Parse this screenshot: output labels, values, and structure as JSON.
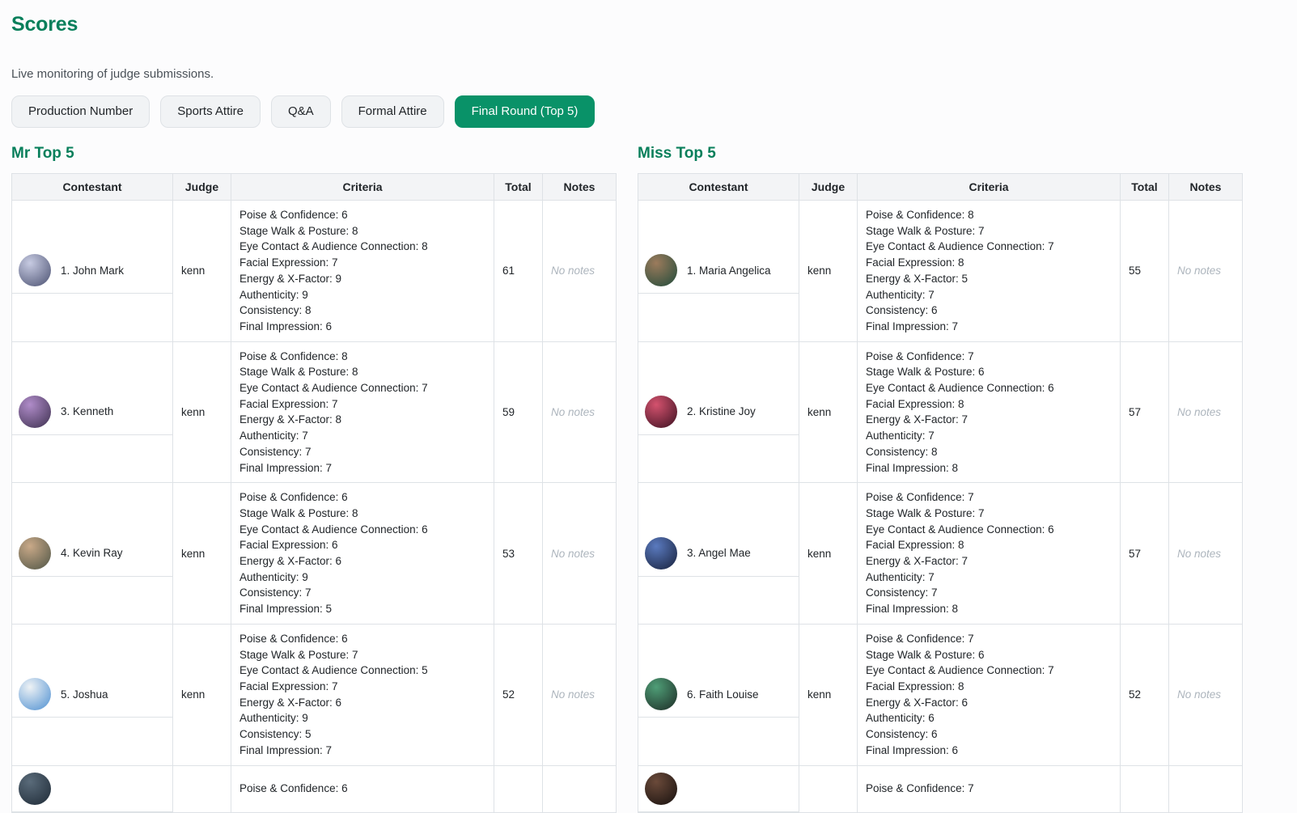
{
  "page": {
    "title": "Scores",
    "subtitle": "Live monitoring of judge submissions."
  },
  "colors": {
    "accent_green": "#099268",
    "heading_green": "#087f5b"
  },
  "tabs": [
    {
      "label": "Production Number",
      "active": false
    },
    {
      "label": "Sports Attire",
      "active": false
    },
    {
      "label": "Q&A",
      "active": false
    },
    {
      "label": "Formal Attire",
      "active": false
    },
    {
      "label": "Final Round (Top 5)",
      "active": true
    }
  ],
  "columns": [
    "Contestant",
    "Judge",
    "Criteria",
    "Total",
    "Notes"
  ],
  "sections": [
    {
      "title": "Mr Top 5",
      "rows": [
        {
          "contestant": "1. John Mark",
          "judge": "kenn",
          "criteria": [
            "Poise & Confidence: 6",
            "Stage Walk & Posture: 8",
            "Eye Contact & Audience Connection: 8",
            "Facial Expression: 7",
            "Energy & X-Factor: 9",
            "Authenticity: 9",
            "Consistency: 8",
            "Final Impression: 6"
          ],
          "total": "61",
          "notes": "No notes",
          "avatar_colors": [
            "#c7cbe2",
            "#4a5070"
          ]
        },
        {
          "contestant": "3. Kenneth",
          "judge": "kenn",
          "criteria": [
            "Poise & Confidence: 8",
            "Stage Walk & Posture: 8",
            "Eye Contact & Audience Connection: 7",
            "Facial Expression: 7",
            "Energy & X-Factor: 8",
            "Authenticity: 7",
            "Consistency: 7",
            "Final Impression: 7"
          ],
          "total": "59",
          "notes": "No notes",
          "avatar_colors": [
            "#b08cc9",
            "#3c2f4e"
          ]
        },
        {
          "contestant": "4. Kevin Ray",
          "judge": "kenn",
          "criteria": [
            "Poise & Confidence: 6",
            "Stage Walk & Posture: 8",
            "Eye Contact & Audience Connection: 6",
            "Facial Expression: 6",
            "Energy & X-Factor: 6",
            "Authenticity: 9",
            "Consistency: 7",
            "Final Impression: 5"
          ],
          "total": "53",
          "notes": "No notes",
          "avatar_colors": [
            "#c9a988",
            "#4e5445"
          ]
        },
        {
          "contestant": "5. Joshua",
          "judge": "kenn",
          "criteria": [
            "Poise & Confidence: 6",
            "Stage Walk & Posture: 7",
            "Eye Contact & Audience Connection: 5",
            "Facial Expression: 7",
            "Energy & X-Factor: 6",
            "Authenticity: 9",
            "Consistency: 5",
            "Final Impression: 7"
          ],
          "total": "52",
          "notes": "No notes",
          "avatar_colors": [
            "#eef2f5",
            "#4d8fd1"
          ]
        },
        {
          "contestant": "",
          "judge": "",
          "criteria": [
            "Poise & Confidence: 6"
          ],
          "total": "",
          "notes": "",
          "avatar_colors": [
            "#5a6b7a",
            "#1e2a36"
          ]
        }
      ]
    },
    {
      "title": "Miss Top 5",
      "rows": [
        {
          "contestant": "1. Maria Angelica",
          "judge": "kenn",
          "criteria": [
            "Poise & Confidence: 8",
            "Stage Walk & Posture: 7",
            "Eye Contact & Audience Connection: 7",
            "Facial Expression: 8",
            "Energy & X-Factor: 5",
            "Authenticity: 7",
            "Consistency: 6",
            "Final Impression: 7"
          ],
          "total": "55",
          "notes": "No notes",
          "avatar_colors": [
            "#9c7b5c",
            "#1f4a3a"
          ]
        },
        {
          "contestant": "2. Kristine Joy",
          "judge": "kenn",
          "criteria": [
            "Poise & Confidence: 7",
            "Stage Walk & Posture: 6",
            "Eye Contact & Audience Connection: 6",
            "Facial Expression: 8",
            "Energy & X-Factor: 7",
            "Authenticity: 7",
            "Consistency: 8",
            "Final Impression: 8"
          ],
          "total": "57",
          "notes": "No notes",
          "avatar_colors": [
            "#d4526e",
            "#3a1020"
          ]
        },
        {
          "contestant": "3. Angel Mae",
          "judge": "kenn",
          "criteria": [
            "Poise & Confidence: 7",
            "Stage Walk & Posture: 7",
            "Eye Contact & Audience Connection: 6",
            "Facial Expression: 8",
            "Energy & X-Factor: 7",
            "Authenticity: 7",
            "Consistency: 7",
            "Final Impression: 8"
          ],
          "total": "57",
          "notes": "No notes",
          "avatar_colors": [
            "#5a7abf",
            "#17203a"
          ]
        },
        {
          "contestant": "6. Faith Louise",
          "judge": "kenn",
          "criteria": [
            "Poise & Confidence: 7",
            "Stage Walk & Posture: 6",
            "Eye Contact & Audience Connection: 7",
            "Facial Expression: 8",
            "Energy & X-Factor: 6",
            "Authenticity: 6",
            "Consistency: 6",
            "Final Impression: 6"
          ],
          "total": "52",
          "notes": "No notes",
          "avatar_colors": [
            "#4f9e77",
            "#1c2a24"
          ]
        },
        {
          "contestant": "",
          "judge": "",
          "criteria": [
            "Poise & Confidence: 7"
          ],
          "total": "",
          "notes": "",
          "avatar_colors": [
            "#6b4a3a",
            "#16100e"
          ]
        }
      ]
    }
  ]
}
